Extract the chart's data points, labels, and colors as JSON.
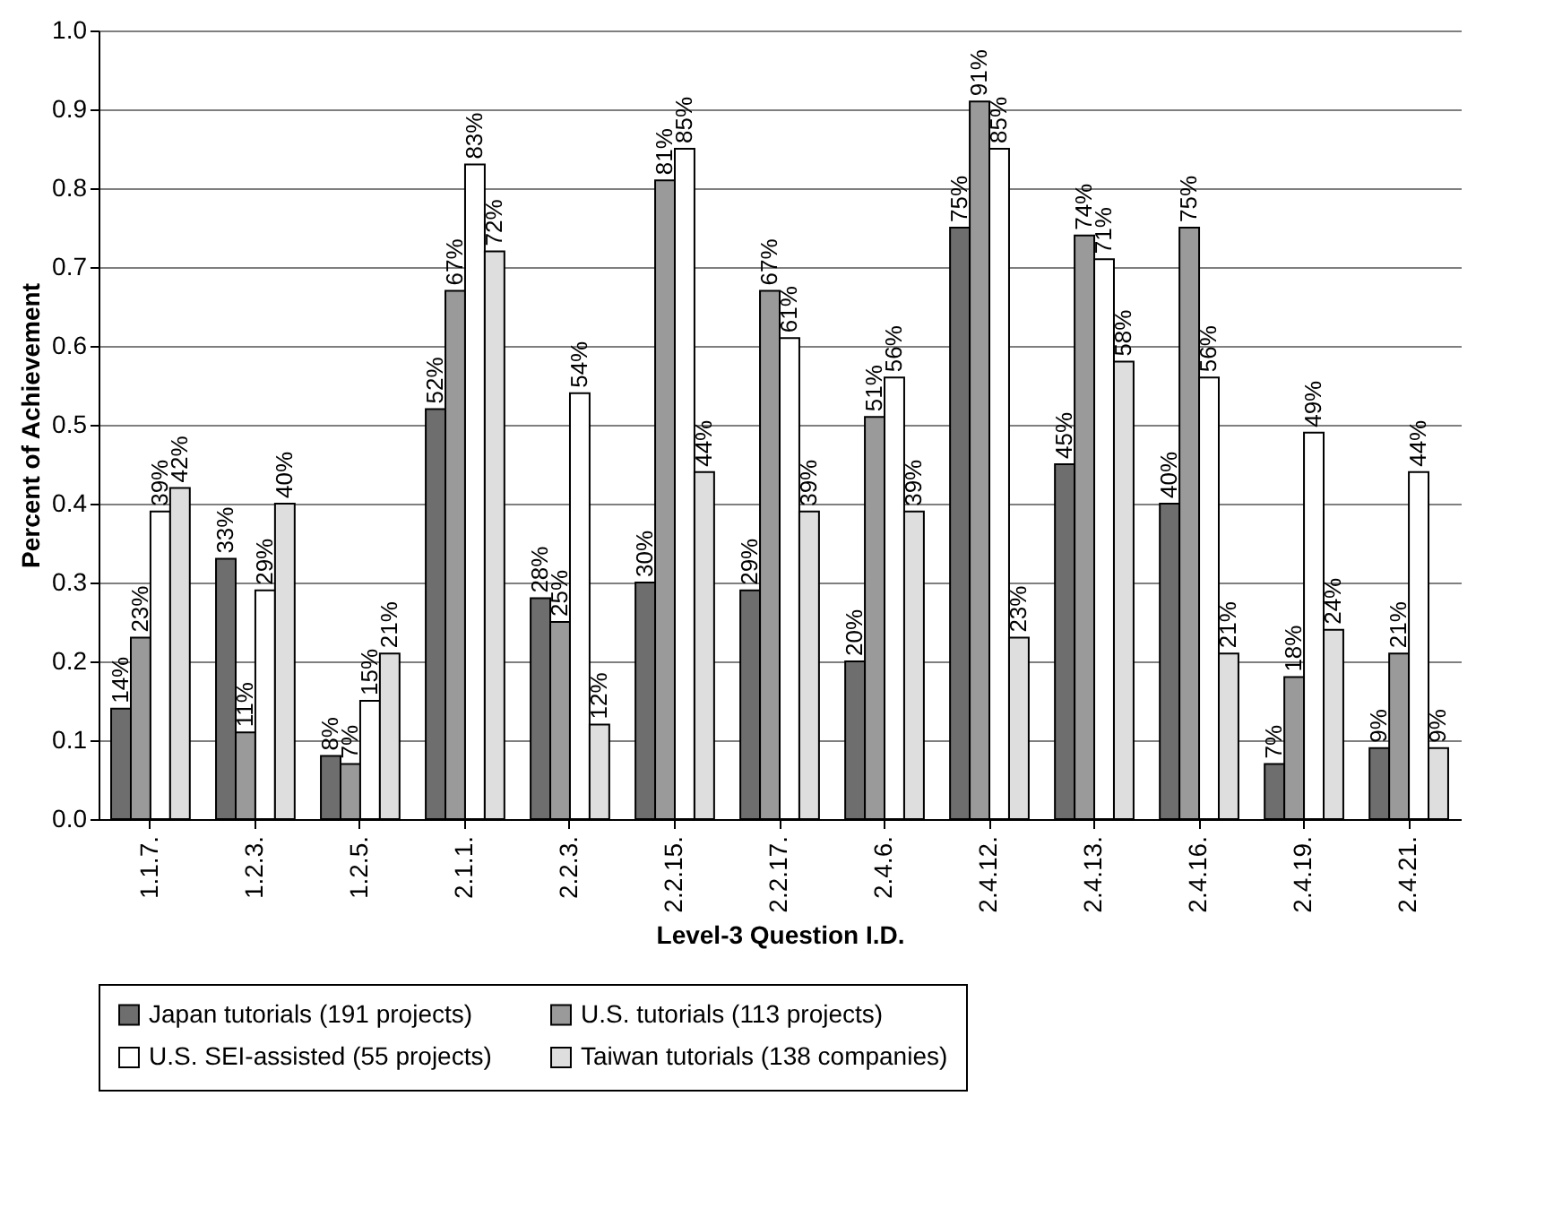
{
  "chart_data": {
    "type": "bar",
    "xlabel": "Level-3 Question I.D.",
    "ylabel": "Percent of Achievement",
    "categories": [
      "1.1.7.",
      "1.2.3.",
      "1.2.5.",
      "2.1.1.",
      "2.2.3.",
      "2.2.15.",
      "2.2.17.",
      "2.4.6.",
      "2.4.12.",
      "2.4.13.",
      "2.4.16.",
      "2.4.19.",
      "2.4.21."
    ],
    "series": [
      {
        "name": "Japan tutorials (191 projects)",
        "color": "#6e6e6e",
        "values": [
          0.14,
          0.33,
          0.08,
          0.52,
          0.28,
          0.3,
          0.29,
          0.2,
          0.75,
          0.45,
          0.4,
          0.07,
          0.09
        ],
        "value_labels": [
          "14%",
          "33%",
          "8%",
          "52%",
          "28%",
          "30%",
          "29%",
          "20%",
          "75%",
          "45%",
          "40%",
          "7%",
          "9%"
        ]
      },
      {
        "name": "U.S. tutorials (113 projects)",
        "color": "#9a9a9a",
        "values": [
          0.23,
          0.11,
          0.07,
          0.67,
          0.25,
          0.81,
          0.67,
          0.51,
          0.91,
          0.74,
          0.75,
          0.18,
          0.21
        ],
        "value_labels": [
          "23%",
          "11%",
          "7%",
          "67%",
          "25%",
          "81%",
          "67%",
          "51%",
          "91%",
          "74%",
          "75%",
          "18%",
          "21%"
        ]
      },
      {
        "name": "U.S. SEI-assisted (55 projects)",
        "color": "#ffffff",
        "values": [
          0.39,
          0.29,
          0.15,
          0.83,
          0.54,
          0.85,
          0.61,
          0.56,
          0.85,
          0.71,
          0.56,
          0.49,
          0.44
        ],
        "value_labels": [
          "39%",
          "29%",
          "15%",
          "83%",
          "54%",
          "85%",
          "61%",
          "56%",
          "85%",
          "71%",
          "56%",
          "49%",
          "44%"
        ]
      },
      {
        "name": "Taiwan tutorials (138 companies)",
        "color": "#dedede",
        "values": [
          0.42,
          0.4,
          0.21,
          0.72,
          0.12,
          0.44,
          0.39,
          0.39,
          0.23,
          0.58,
          0.21,
          0.24,
          0.09
        ],
        "value_labels": [
          "42%",
          "40%",
          "21%",
          "72%",
          "12%",
          "44%",
          "39%",
          "39%",
          "23%",
          "58%",
          "21%",
          "24%",
          "9%"
        ]
      }
    ],
    "ylim": [
      0,
      1
    ],
    "yticks": [
      {
        "value": 0,
        "label": "0.0"
      },
      0.1,
      0.2,
      0.3,
      0.4,
      0.5,
      0.6,
      0.7,
      0.8,
      0.9,
      {
        "value": 1,
        "label": "1.0"
      }
    ],
    "grid": "y",
    "legend": "bottom"
  }
}
